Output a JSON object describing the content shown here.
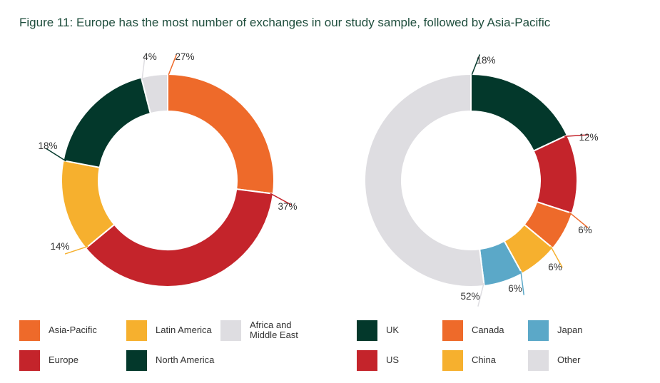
{
  "title": "Figure 11: Europe has the most number of exchanges in our study sample, followed by Asia-Pacific",
  "chart_data": [
    {
      "type": "donut",
      "name": "",
      "labels": [
        "Asia-Pacific",
        "Europe",
        "Latin America",
        "North America",
        "Africa and Middle East"
      ],
      "values": [
        27,
        37,
        14,
        18,
        4
      ],
      "value_labels": [
        "27%",
        "37%",
        "14%",
        "18%",
        "4%"
      ],
      "colors": [
        "#ee6a2a",
        "#c4242b",
        "#f6b02e",
        "#03382b",
        "#dedde1"
      ],
      "legend": [
        {
          "label": "Asia-Pacific",
          "color": "#ee6a2a"
        },
        {
          "label": "Latin America",
          "color": "#f6b02e"
        },
        {
          "label": "Africa and\nMiddle East",
          "color": "#dedde1"
        },
        {
          "label": "Europe",
          "color": "#c4242b"
        },
        {
          "label": "North America",
          "color": "#03382b"
        }
      ],
      "legend_placement": "bottom"
    },
    {
      "type": "donut",
      "name": "",
      "labels": [
        "UK",
        "US",
        "Canada",
        "China",
        "Japan",
        "Other"
      ],
      "values": [
        18,
        12,
        6,
        6,
        6,
        52
      ],
      "value_labels": [
        "18%",
        "12%",
        "6%",
        "6%",
        "6%",
        "52%"
      ],
      "colors": [
        "#03382b",
        "#c4242b",
        "#ee6a2a",
        "#f6b02e",
        "#5ba8c8",
        "#dedde1"
      ],
      "legend": [
        {
          "label": "UK",
          "color": "#03382b"
        },
        {
          "label": "Canada",
          "color": "#ee6a2a"
        },
        {
          "label": "Japan",
          "color": "#5ba8c8"
        },
        {
          "label": "US",
          "color": "#c4242b"
        },
        {
          "label": "China",
          "color": "#f6b02e"
        },
        {
          "label": "Other",
          "color": "#dedde1"
        }
      ],
      "legend_placement": "bottom"
    }
  ]
}
